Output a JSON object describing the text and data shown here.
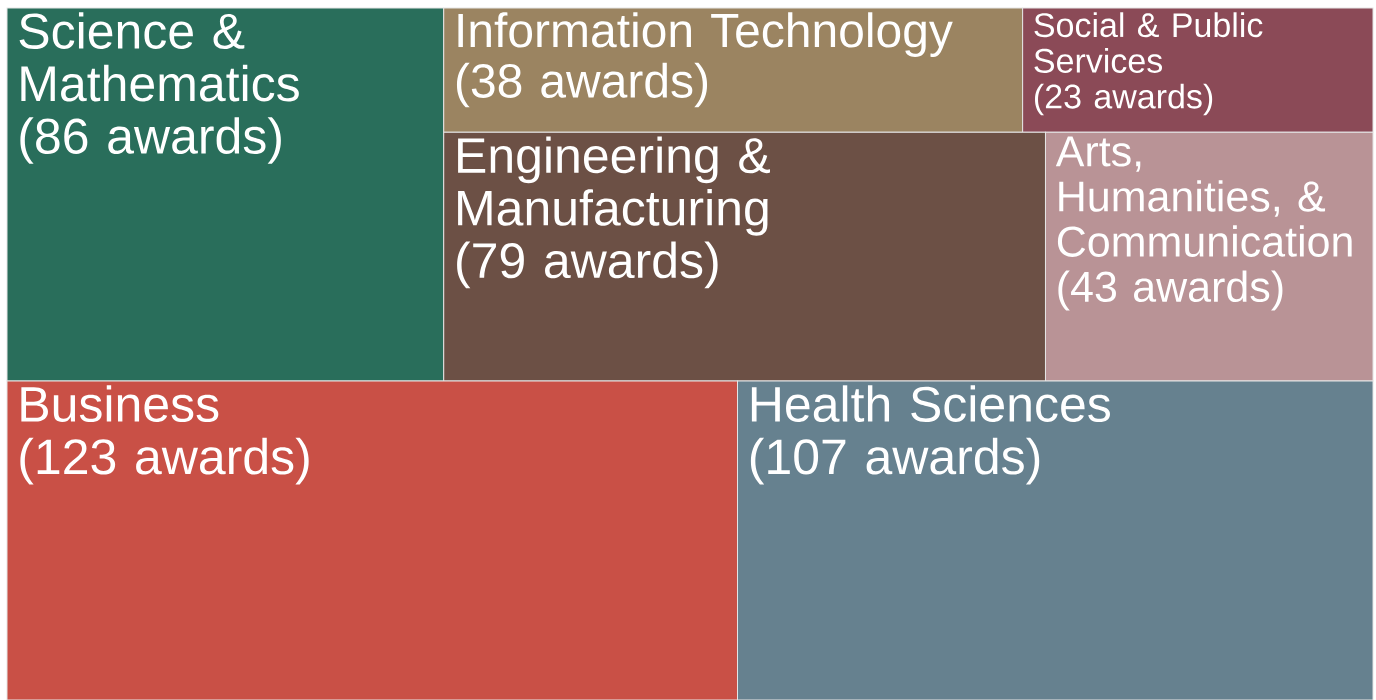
{
  "chart_data": {
    "type": "other",
    "categories": [
      "Science & Mathematics",
      "Information Technology",
      "Social & Public Services",
      "Engineering & Manufacturing",
      "Arts, Humanities, & Communication",
      "Business",
      "Health Sciences"
    ],
    "values": [
      86,
      38,
      23,
      79,
      43,
      123,
      107
    ],
    "value_labels": [
      "(86 awards)",
      "(38 awards)",
      "(23 awards)",
      "(79 awards)",
      "(43 awards)",
      "(123 awards)",
      "(107 awards)"
    ],
    "colors": [
      "#296e5b",
      "#9b8461",
      "#8b4a57",
      "#6c5045",
      "#b99396",
      "#c95046",
      "#66818f"
    ]
  }
}
